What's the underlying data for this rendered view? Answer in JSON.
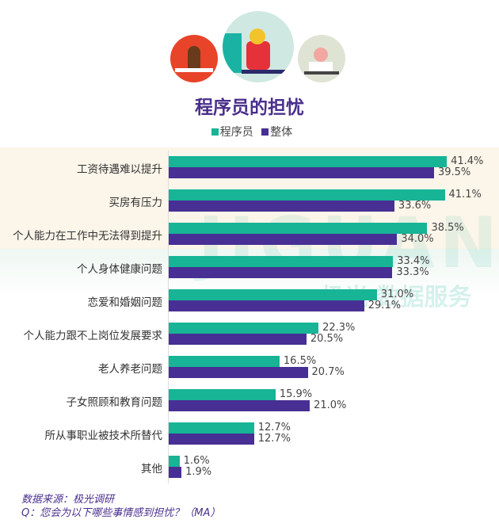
{
  "chart_data": {
    "type": "bar",
    "orientation": "horizontal",
    "title": "程序员的担忧",
    "legend_position": "top",
    "categories": [
      "工资待遇难以提升",
      "买房有压力",
      "个人能力在工作中无法得到提升",
      "个人身体健康问题",
      "恋爱和婚姻问题",
      "个人能力跟不上岗位发展要求",
      "老人养老问题",
      "子女照顾和教育问题",
      "所从事职业被技术所替代",
      "其他"
    ],
    "series": [
      {
        "name": "程序员",
        "color": "#17b496",
        "values": [
          41.4,
          41.1,
          38.5,
          33.4,
          31.0,
          22.3,
          16.5,
          15.9,
          12.7,
          1.6
        ]
      },
      {
        "name": "整体",
        "color": "#472f93",
        "values": [
          39.5,
          33.6,
          34.0,
          33.3,
          29.1,
          20.5,
          20.7,
          21.0,
          12.7,
          1.9
        ]
      }
    ],
    "unit": "%",
    "grid": false
  },
  "source": "数据来源：极光调研",
  "question": "Q：您会为以下哪些事情感到担忧？（MA）",
  "watermark": "JIGUANG 极光 数据服务"
}
